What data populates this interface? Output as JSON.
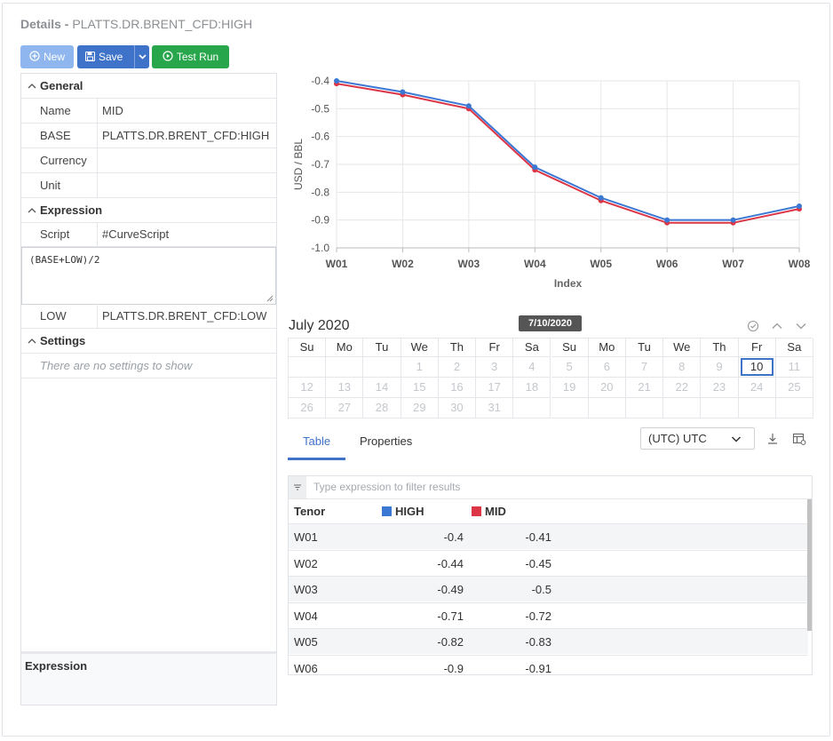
{
  "header": {
    "title_prefix": "Details -",
    "title_name": "PLATTS.DR.BRENT_CFD:HIGH"
  },
  "toolbar": {
    "new_label": "New",
    "save_label": "Save",
    "test_label": "Test Run"
  },
  "panel": {
    "general": {
      "label": "General",
      "rows": [
        {
          "key": "Name",
          "value": "MID"
        },
        {
          "key": "BASE",
          "value": "PLATTS.DR.BRENT_CFD:HIGH"
        },
        {
          "key": "Currency",
          "value": ""
        },
        {
          "key": "Unit",
          "value": ""
        }
      ]
    },
    "expression": {
      "label": "Expression",
      "script_key": "Script",
      "script_value": "#CurveScript",
      "code": "(BASE+LOW)/2",
      "low_key": "LOW",
      "low_value": "PLATTS.DR.BRENT_CFD:LOW"
    },
    "settings": {
      "label": "Settings",
      "empty_text": "There are no settings to show"
    },
    "footer_label": "Expression"
  },
  "chart_data": {
    "type": "line",
    "categories": [
      "W01",
      "W02",
      "W03",
      "W04",
      "W05",
      "W06",
      "W07",
      "W08"
    ],
    "series": [
      {
        "name": "HIGH",
        "color": "#3a78d4",
        "values": [
          -0.4,
          -0.44,
          -0.49,
          -0.71,
          -0.82,
          -0.9,
          -0.9,
          -0.85
        ]
      },
      {
        "name": "MID",
        "color": "#dc3545",
        "values": [
          -0.41,
          -0.45,
          -0.5,
          -0.72,
          -0.83,
          -0.91,
          -0.91,
          -0.86
        ]
      }
    ],
    "xlabel": "Index",
    "ylabel": "USD / BBL",
    "ylim": [
      -1.0,
      -0.4
    ],
    "yticks": [
      -0.4,
      -0.5,
      -0.6,
      -0.7,
      -0.8,
      -0.9,
      -1.0
    ],
    "ytick_labels": [
      "-0.4",
      "-0.5",
      "-0.6",
      "-0.7",
      "-0.8",
      "-0.9",
      "-1.0"
    ],
    "grid": true
  },
  "calendar": {
    "month_label": "July 2020",
    "selected_badge": "7/10/2020",
    "day_headers": [
      "Su",
      "Mo",
      "Tu",
      "We",
      "Th",
      "Fr",
      "Sa",
      "Su",
      "Mo",
      "Tu",
      "We",
      "Th",
      "Fr",
      "Sa"
    ],
    "rows": [
      [
        "",
        "",
        "",
        "1",
        "2",
        "3",
        "4",
        "5",
        "6",
        "7",
        "8",
        "9",
        "10",
        "11"
      ],
      [
        "12",
        "13",
        "14",
        "15",
        "16",
        "17",
        "18",
        "19",
        "20",
        "21",
        "22",
        "23",
        "24",
        "25"
      ],
      [
        "26",
        "27",
        "28",
        "29",
        "30",
        "31",
        "",
        "",
        "",
        "",
        "",
        "",
        "",
        ""
      ]
    ],
    "selected_day": "10"
  },
  "tabs": [
    {
      "label": "Table",
      "active": true
    },
    {
      "label": "Properties",
      "active": false
    }
  ],
  "timezone": {
    "value": "(UTC) UTC"
  },
  "table": {
    "filter_placeholder": "Type expression to filter results",
    "headers": {
      "tenor": "Tenor",
      "high": "HIGH",
      "mid": "MID"
    },
    "colors": {
      "high": "#3a78d4",
      "mid": "#dc3545"
    },
    "rows": [
      {
        "tenor": "W01",
        "high": "-0.4",
        "mid": "-0.41"
      },
      {
        "tenor": "W02",
        "high": "-0.44",
        "mid": "-0.45"
      },
      {
        "tenor": "W03",
        "high": "-0.49",
        "mid": "-0.5"
      },
      {
        "tenor": "W04",
        "high": "-0.71",
        "mid": "-0.72"
      },
      {
        "tenor": "W05",
        "high": "-0.82",
        "mid": "-0.83"
      },
      {
        "tenor": "W06",
        "high": "-0.9",
        "mid": "-0.91"
      }
    ]
  },
  "icons": {
    "new": "plus-circle-icon",
    "save": "floppy-icon",
    "test": "play-circle-icon",
    "collapse": "chevron-up-icon",
    "download": "download-icon",
    "columns": "table-settings-icon"
  }
}
